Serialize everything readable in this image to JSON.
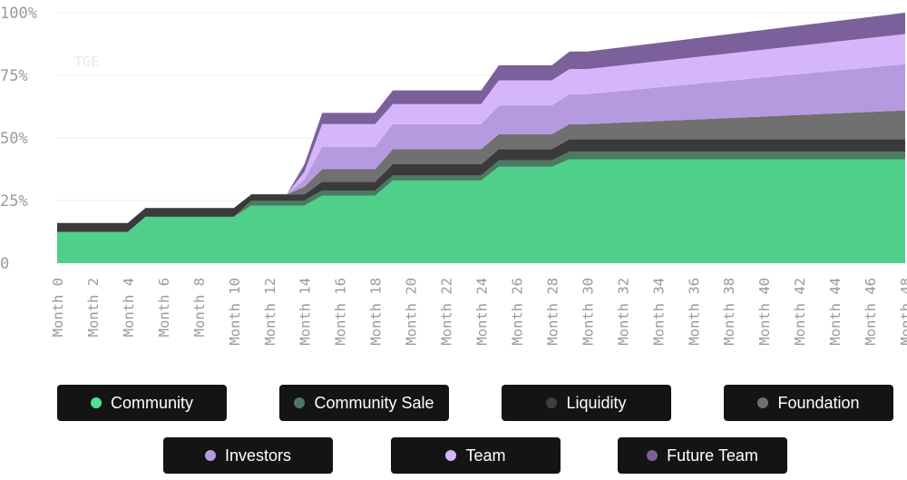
{
  "chart_data": {
    "type": "area",
    "stacked": true,
    "annotation": "TGE",
    "y_ticks": [
      "100%",
      "75%",
      "50%",
      "25%",
      "0"
    ],
    "ylim": [
      0,
      100
    ],
    "grid": true,
    "legend_position": "bottom",
    "x": [
      0,
      2,
      4,
      5,
      6,
      8,
      10,
      11,
      12,
      13,
      14,
      15,
      16,
      18,
      19,
      20,
      22,
      24,
      25,
      26,
      28,
      29,
      30,
      48
    ],
    "x_tick_labels": [
      "Month 0",
      "Month 2",
      "Month 4",
      "Month 6",
      "Month 8",
      "Month 10",
      "Month 12",
      "Month 14",
      "Month 16",
      "Month 18",
      "Month 20",
      "Month 22",
      "Month 24",
      "Month 26",
      "Month 28",
      "Month 30",
      "Month 32",
      "Month 34",
      "Month 36",
      "Month 38",
      "Month 40",
      "Month 42",
      "Month 44",
      "Month 46",
      "Month 48"
    ],
    "series": [
      {
        "name": "Community",
        "color": "#4fd08a",
        "values": [
          12.5,
          12.5,
          12.5,
          18.5,
          18.5,
          18.5,
          18.5,
          23,
          23,
          23,
          23,
          27,
          27,
          27,
          33,
          33,
          33,
          33,
          38.5,
          38.5,
          38.5,
          41.5,
          41.5,
          41.5
        ]
      },
      {
        "name": "Community Sale",
        "color": "#4a7a61",
        "values": [
          0,
          0,
          0,
          0,
          0,
          0,
          0,
          2,
          2,
          2,
          2,
          2,
          2,
          2,
          2,
          2,
          2,
          2,
          2.5,
          2.5,
          2.5,
          3,
          3,
          3
        ]
      },
      {
        "name": "Liquidity",
        "color": "#3a3a3a",
        "values": [
          3.5,
          3.5,
          3.5,
          3.5,
          3.5,
          3.5,
          3.5,
          2.5,
          2.5,
          2.5,
          2.5,
          3.5,
          3.5,
          3.5,
          4.5,
          4.5,
          4.5,
          4.5,
          4.5,
          4.5,
          4.5,
          5,
          5,
          5
        ]
      },
      {
        "name": "Foundation",
        "color": "#707070",
        "values": [
          0,
          0,
          0,
          0,
          0,
          0,
          0,
          0,
          0,
          0,
          3,
          5,
          5,
          5,
          6,
          6,
          6,
          6,
          6,
          6,
          6,
          6,
          6,
          11.5
        ]
      },
      {
        "name": "Investors",
        "color": "#b69ae0",
        "values": [
          0,
          0,
          0,
          0,
          0,
          0,
          0,
          0,
          0,
          0,
          3,
          9,
          9,
          9,
          10,
          10,
          10,
          10,
          11.5,
          11.5,
          11.5,
          12,
          12,
          18.5
        ]
      },
      {
        "name": "Team",
        "color": "#d6b6fb",
        "values": [
          0,
          0,
          0,
          0,
          0,
          0,
          0,
          0,
          0,
          0,
          3,
          9,
          9,
          9,
          8,
          8,
          8,
          8,
          10,
          10,
          10,
          10,
          10,
          12
        ]
      },
      {
        "name": "Future Team",
        "color": "#7b609b",
        "values": [
          0,
          0,
          0,
          0,
          0,
          0,
          0,
          0,
          0,
          0,
          3,
          4.5,
          4.5,
          4.5,
          5.5,
          5.5,
          5.5,
          5.5,
          6,
          6,
          6,
          7,
          7,
          8.5
        ]
      }
    ]
  }
}
